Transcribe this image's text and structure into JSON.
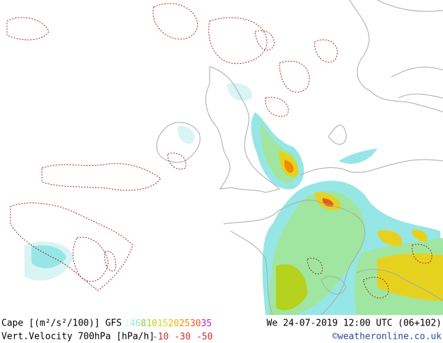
{
  "footer": {
    "cape_label": "Cape [(m²/s²/100)] GFS",
    "cape_levels": [
      {
        "value": 1,
        "color": "#d8f4f4"
      },
      {
        "value": 4,
        "color": "#96e6e6"
      },
      {
        "value": 6,
        "color": "#a0e6a0"
      },
      {
        "value": 8,
        "color": "#78d050"
      },
      {
        "value": 10,
        "color": "#b4d21e"
      },
      {
        "value": 15,
        "color": "#e6d21e"
      },
      {
        "value": 20,
        "color": "#f0b400"
      },
      {
        "value": 25,
        "color": "#f08c00"
      },
      {
        "value": 30,
        "color": "#e65a1e"
      },
      {
        "value": 35,
        "color": "#b428b4"
      }
    ],
    "date": "We 24-07-2019 12:00 UTC (06+102)",
    "vv_label": "Vert.Velocity 700hPa [hPa/h]",
    "vv_levels": [
      {
        "value": -10,
        "color": "#c83232"
      },
      {
        "value": -30,
        "color": "#c83232"
      },
      {
        "value": -50,
        "color": "#c83232"
      }
    ],
    "credit": "©weatheronline.co.uk"
  }
}
